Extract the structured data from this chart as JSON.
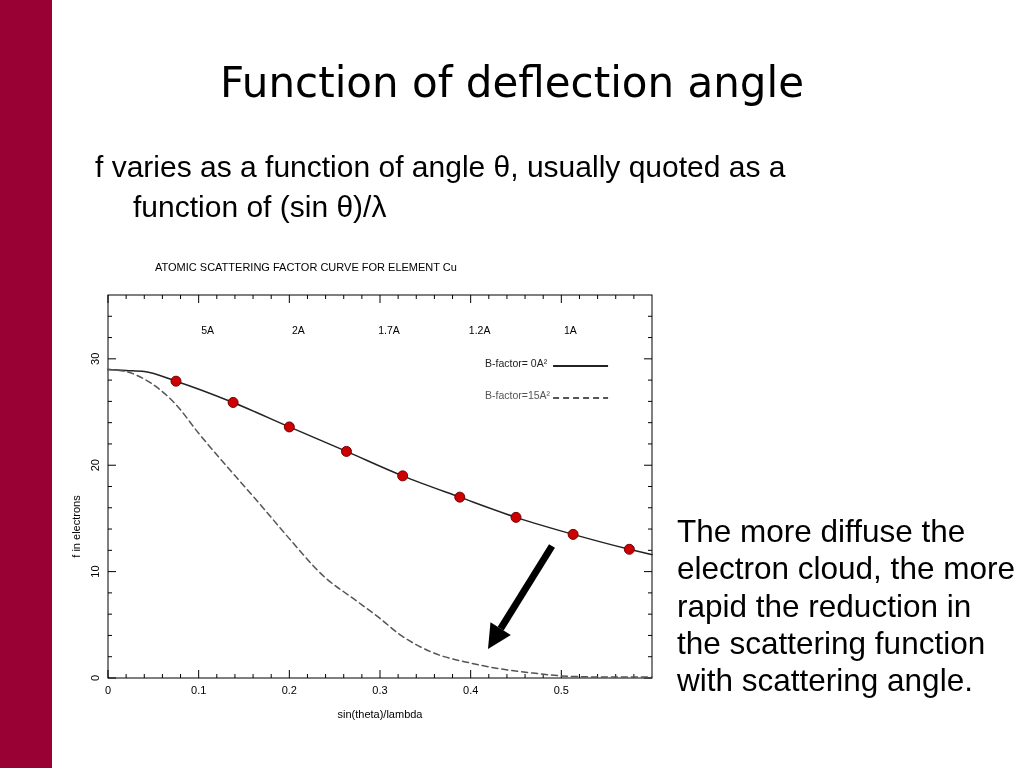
{
  "chart_data": {
    "type": "line",
    "title": "Function of deflection angle",
    "subtitle": "f varies as a function of angle θ, usually quoted as a function of (sin θ)/λ",
    "annotations": [
      "ATOMIC SCATTERING FACTOR CURVE FOR ELEMENT Cu",
      "5A",
      "2A",
      "1.7A",
      "1.2A",
      "1A",
      "The more diffuse the electron cloud, the more rapid the reduction in the scattering function with scattering angle."
    ],
    "xlabel": "sin(theta)/lambda",
    "ylabel": "f in electrons",
    "xlim": [
      0,
      0.6
    ],
    "xticks": [
      0,
      {
        "value": 0.02,
        "label": null
      },
      {
        "value": 0.04,
        "label": null
      },
      {
        "value": 0.06,
        "label": null
      },
      {
        "value": 0.08,
        "label": null
      },
      0.1,
      {
        "value": 0.12,
        "label": null
      },
      {
        "value": 0.14,
        "label": null
      },
      {
        "value": 0.16,
        "label": null
      },
      {
        "value": 0.18,
        "label": null
      },
      0.2,
      {
        "value": 0.22,
        "label": null
      },
      {
        "value": 0.24,
        "label": null
      },
      {
        "value": 0.26,
        "label": null
      },
      {
        "value": 0.28,
        "label": null
      },
      0.3,
      {
        "value": 0.32,
        "label": null
      },
      {
        "value": 0.34,
        "label": null
      },
      {
        "value": 0.36,
        "label": null
      },
      {
        "value": 0.38,
        "label": null
      },
      0.4,
      {
        "value": 0.42,
        "label": null
      },
      {
        "value": 0.44,
        "label": null
      },
      {
        "value": 0.46,
        "label": null
      },
      {
        "value": 0.48,
        "label": null
      },
      0.5,
      {
        "value": 0.52,
        "label": null
      },
      {
        "value": 0.54,
        "label": null
      },
      {
        "value": 0.56,
        "label": null
      },
      {
        "value": 0.58,
        "label": null
      }
    ],
    "ylim": [
      0,
      36
    ],
    "yticks": [
      0,
      {
        "value": 2,
        "label": null
      },
      {
        "value": 4,
        "label": null
      },
      {
        "value": 6,
        "label": null
      },
      {
        "value": 8,
        "label": null
      },
      10,
      {
        "value": 12,
        "label": null
      },
      {
        "value": 14,
        "label": null
      },
      {
        "value": 16,
        "label": null
      },
      {
        "value": 18,
        "label": null
      },
      20,
      {
        "value": 22,
        "label": null
      },
      {
        "value": 24,
        "label": null
      },
      {
        "value": 26,
        "label": null
      },
      {
        "value": 28,
        "label": null
      },
      30,
      {
        "value": 32,
        "label": null
      },
      {
        "value": 34,
        "label": null
      }
    ],
    "legend": "top right",
    "series": [
      {
        "name": "B-factor= 0A²",
        "color": "#222222",
        "line_style": "solid",
        "marker": "none",
        "x": [
          0,
          0.02,
          0.04,
          0.075,
          0.138,
          0.2,
          0.263,
          0.325,
          0.388,
          0.45,
          0.513,
          0.575,
          0.6
        ],
        "values": [
          29,
          28.9,
          28.8,
          27.9,
          25.9,
          23.6,
          21.3,
          19.0,
          17.0,
          15.1,
          13.5,
          12.1,
          11.6
        ]
      },
      {
        "name": "B-factor=15A²",
        "color": "#555555",
        "line_style": "dashed",
        "marker": "none",
        "x": [
          0,
          0.02,
          0.04,
          0.075,
          0.1,
          0.13,
          0.17,
          0.2,
          0.24,
          0.27,
          0.3,
          0.32,
          0.355,
          0.4,
          0.43,
          0.465,
          0.5,
          0.54,
          0.6
        ],
        "values": [
          29,
          28.8,
          28.1,
          25.7,
          23.0,
          20.0,
          16.1,
          13.1,
          9.4,
          7.5,
          5.6,
          4.2,
          2.5,
          1.4,
          0.9,
          0.5,
          0.2,
          0.1,
          0.1
        ]
      },
      {
        "type": "scatter",
        "color": "#cc0000",
        "marker": "circle",
        "x": [
          0.075,
          0.138,
          0.2,
          0.263,
          0.325,
          0.388,
          0.45,
          0.513,
          0.575
        ],
        "values": [
          27.9,
          25.9,
          23.6,
          21.3,
          19.0,
          17.0,
          15.1,
          13.5,
          12.1
        ]
      }
    ]
  }
}
